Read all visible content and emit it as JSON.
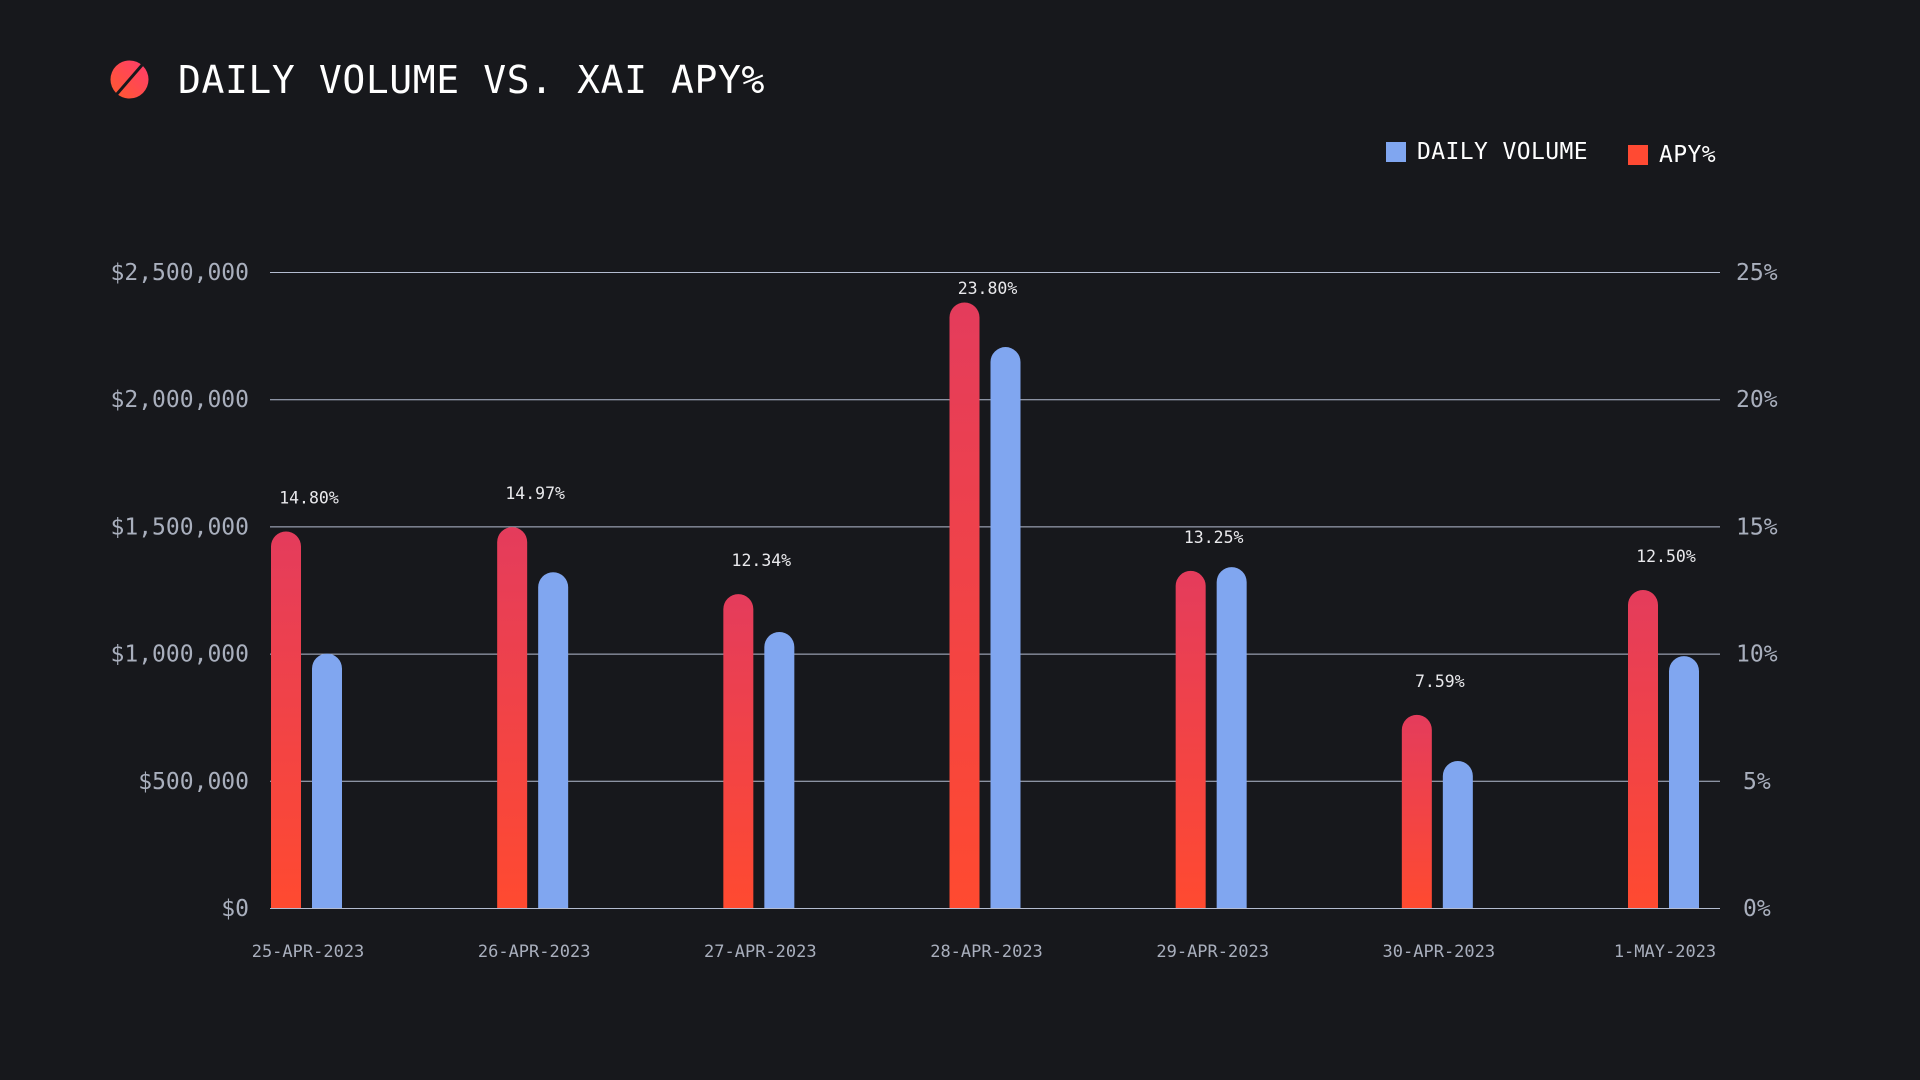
{
  "header": {
    "title": "DAILY VOLUME VS. XAI APY%",
    "logo_icon": "slashed-circle-icon"
  },
  "legend": [
    {
      "label": "DAILY VOLUME",
      "color": "#80a6f0"
    },
    {
      "label": "APY%",
      "color": "#ff4a33"
    }
  ],
  "chart_data": {
    "type": "bar",
    "title": "DAILY VOLUME VS. XAI APY%",
    "xlabel": "",
    "ylabel": "",
    "categories": [
      "25-APR-2023",
      "26-APR-2023",
      "27-APR-2023",
      "28-APR-2023",
      "29-APR-2023",
      "30-APR-2023",
      "1-MAY-2023"
    ],
    "series": [
      {
        "name": "APY%",
        "axis": "right",
        "color_top": "#e43c5c",
        "color_bottom": "#ff4a30",
        "values": [
          14.8,
          14.97,
          12.34,
          23.8,
          13.25,
          7.59,
          12.5
        ],
        "labels": [
          "14.80%",
          "14.97%",
          "12.34%",
          "23.80%",
          "13.25%",
          "7.59%",
          "12.50%"
        ]
      },
      {
        "name": "DAILY VOLUME",
        "axis": "left",
        "color": "#80a6f0",
        "values": [
          1000000,
          1320000,
          1085000,
          2205000,
          1340000,
          578000,
          990000
        ]
      }
    ],
    "y_left": {
      "ylim": [
        0,
        2500000
      ],
      "ticks": [
        0,
        500000,
        1000000,
        1500000,
        2000000,
        2500000
      ],
      "tick_labels": [
        "$0",
        "$500,000",
        "$1,000,000",
        "$1,500,000",
        "$2,000,000",
        "$2,500,000"
      ]
    },
    "y_right": {
      "ylim": [
        0,
        25
      ],
      "ticks": [
        0,
        5,
        10,
        15,
        20,
        25
      ],
      "tick_labels": [
        "0%",
        "5%",
        "10%",
        "15%",
        "20%",
        "25%"
      ]
    },
    "grid": true,
    "legend_position": "top-right"
  }
}
